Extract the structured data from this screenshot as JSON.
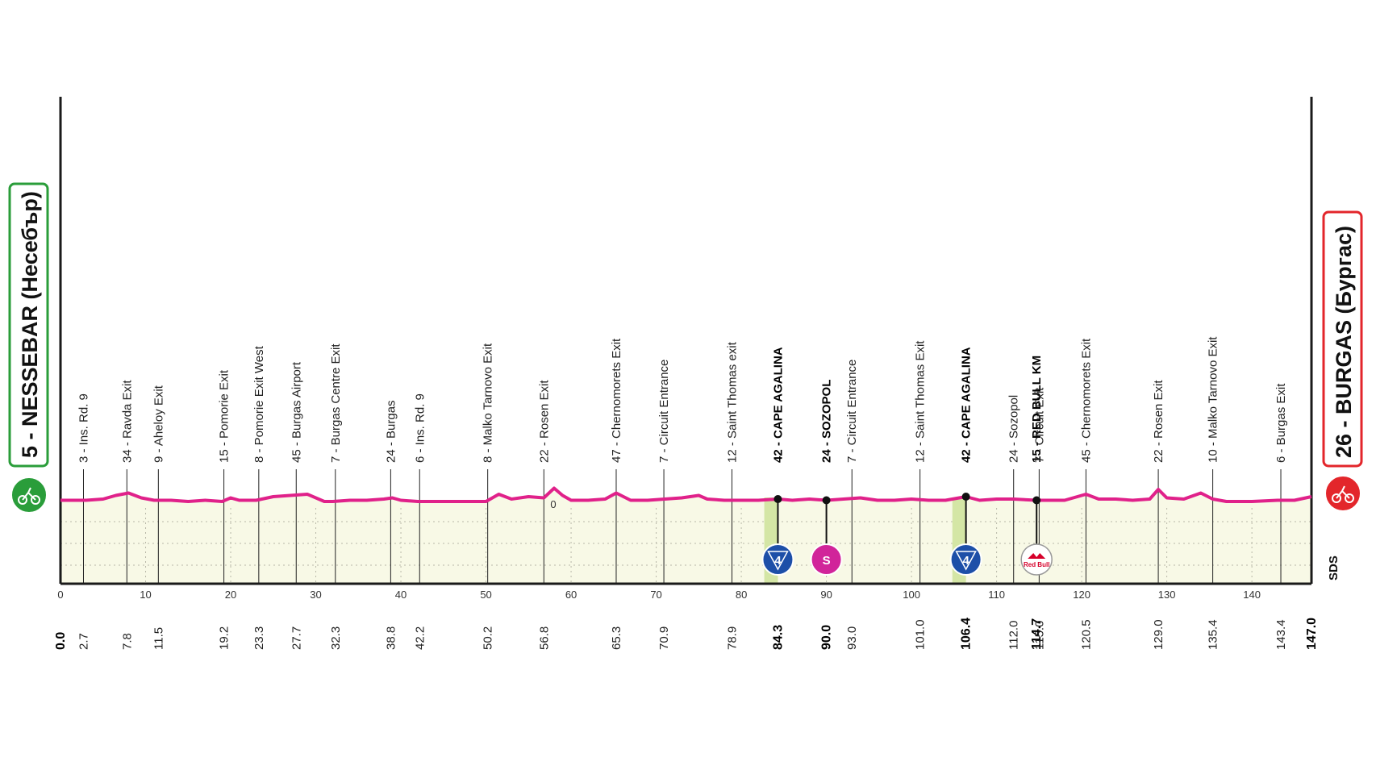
{
  "chart_data": {
    "type": "area",
    "title": "",
    "xlabel": "",
    "ylabel": "",
    "xlim": [
      0,
      147.0
    ],
    "x_ticks": [
      0,
      10,
      20,
      30,
      40,
      50,
      60,
      70,
      80,
      90,
      100,
      110,
      120,
      130,
      140
    ],
    "elevation_marker": "0",
    "start": {
      "label": "5 - NESSEBAR (Несебър)",
      "km": 0.0,
      "color": "#2a9d3a"
    },
    "finish": {
      "label": "26 - BURGAS (Бургас)",
      "km": 147.0,
      "color": "#e3262b"
    },
    "line_color": "#e0218a",
    "fill_color": "#f8f9e6",
    "climb_fill_color": "#d4e6a5",
    "watermark": "SDS",
    "profile": {
      "x": [
        0,
        3,
        5,
        6.5,
        8,
        9.5,
        11,
        13,
        15,
        17,
        19,
        20,
        21,
        23,
        25,
        27,
        29,
        31,
        32,
        34,
        36,
        38,
        39,
        40,
        42,
        45,
        48,
        50,
        51.5,
        53,
        55,
        56.8,
        58,
        59,
        60,
        62,
        64,
        65.3,
        67,
        69,
        71,
        73,
        75,
        76,
        78,
        80,
        82,
        84.3,
        86,
        88,
        90,
        92,
        94,
        96,
        98,
        100,
        102,
        104,
        106.4,
        108,
        110,
        112,
        114.7,
        116,
        118,
        120.5,
        122,
        124,
        126,
        128,
        129,
        130,
        132,
        134,
        135.4,
        137,
        140,
        143,
        145,
        147
      ],
      "y": [
        5,
        5,
        6,
        9,
        11,
        7,
        5,
        5,
        4,
        5,
        4,
        7,
        5,
        5,
        8,
        9,
        10,
        4,
        4,
        5,
        5,
        6,
        7,
        5,
        4,
        4,
        4,
        4,
        10,
        6,
        8,
        7,
        15,
        9,
        5,
        5,
        6,
        11,
        5,
        5,
        6,
        7,
        9,
        6,
        5,
        5,
        5,
        6,
        5,
        6,
        5,
        6,
        7,
        5,
        5,
        6,
        5,
        5,
        8,
        5,
        6,
        6,
        5,
        5,
        5,
        10,
        6,
        6,
        5,
        6,
        14,
        7,
        6,
        11,
        6,
        4,
        4,
        5,
        5,
        8
      ]
    },
    "waypoints": [
      {
        "km": 2.7,
        "label": "3 - Ins. Rd. 9"
      },
      {
        "km": 7.8,
        "label": "34 - Ravda Exit"
      },
      {
        "km": 11.5,
        "label": "9 - Aheloy Exit"
      },
      {
        "km": 19.2,
        "label": "15 - Pomorie Exit"
      },
      {
        "km": 23.3,
        "label": "8 - Pomorie Exit West"
      },
      {
        "km": 27.7,
        "label": "45 - Burgas Airport"
      },
      {
        "km": 32.3,
        "label": "7 - Burgas Centre Exit"
      },
      {
        "km": 38.8,
        "label": "24 - Burgas"
      },
      {
        "km": 42.2,
        "label": "6 - Ins. Rd. 9"
      },
      {
        "km": 50.2,
        "label": "8 - Malko Tarnovo Exit"
      },
      {
        "km": 56.8,
        "label": "22 - Rosen Exit"
      },
      {
        "km": 65.3,
        "label": "47 - Chernomorets Exit"
      },
      {
        "km": 70.9,
        "label": "7 - Circuit Entrance"
      },
      {
        "km": 78.9,
        "label": "12 - Saint Thomas exit"
      },
      {
        "km": 84.3,
        "label": "42 - CAPE AGALINA",
        "key": true,
        "marker": "kom"
      },
      {
        "km": 90.0,
        "label": "24 - SOZOPOL",
        "key": true,
        "marker": "sprint"
      },
      {
        "km": 93.0,
        "label": "7 - Circuit Entrance"
      },
      {
        "km": 101.0,
        "label": "12 - Saint Thomas Exit"
      },
      {
        "km": 106.4,
        "label": "42 - CAPE AGALINA",
        "key": true,
        "marker": "kom"
      },
      {
        "km": 112.0,
        "label": "24 - Sozopol"
      },
      {
        "km": 114.7,
        "label": "15 - RED BULL KM",
        "key": true,
        "marker": "redbull"
      },
      {
        "km": 115.0,
        "label": "7 - Circuit Exit"
      },
      {
        "km": 120.5,
        "label": "45 - Chernomorets Exit"
      },
      {
        "km": 129.0,
        "label": "22 - Rosen Exit"
      },
      {
        "km": 135.4,
        "label": "10 - Malko Tarnovo Exit"
      },
      {
        "km": 143.4,
        "label": "6 - Burgas Exit"
      }
    ],
    "km_labels": [
      "0.0",
      "2.7",
      "7.8",
      "11.5",
      "19.2",
      "23.3",
      "27.7",
      "32.3",
      "38.8",
      "42.2",
      "50.2",
      "56.8",
      "65.3",
      "70.9",
      "78.9",
      "84.3",
      "90.0",
      "93.0",
      "101.0",
      "106.4",
      "112.0",
      "114.7",
      "115.0",
      "120.5",
      "129.0",
      "135.4",
      "143.4",
      "147.0"
    ],
    "key_km_labels": [
      "0.0",
      "84.3",
      "90.0",
      "106.4",
      "114.7",
      "147.0"
    ],
    "markers": {
      "kom": {
        "text": "4",
        "color": "#1d4fa8"
      },
      "sprint": {
        "text": "S",
        "color": "#d1249a"
      },
      "redbull": {
        "text": "Red Bull",
        "color": "#d6002a"
      }
    },
    "climbs": [
      {
        "from": 82.7,
        "to": 84.3
      },
      {
        "from": 104.8,
        "to": 106.4
      }
    ]
  }
}
